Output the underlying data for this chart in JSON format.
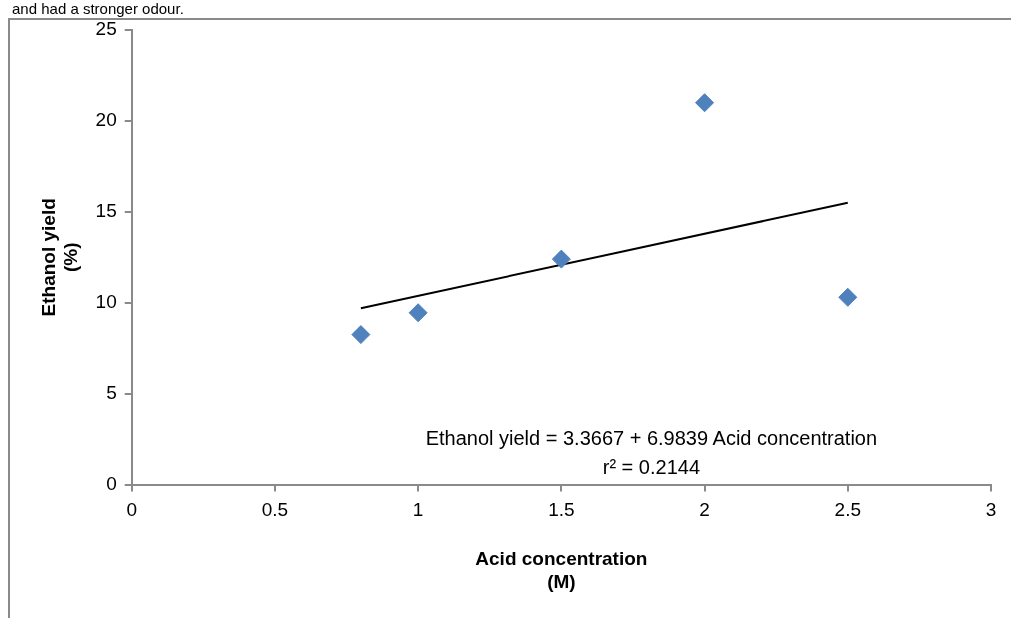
{
  "chart_data": {
    "type": "scatter",
    "xlabel": "Acid concentration (M)",
    "ylabel": "Ethanol yield (%)",
    "x": [
      0.8,
      1,
      1.5,
      2,
      2.5
    ],
    "series": [
      {
        "color": "#4f81bd",
        "values": [
          8.25,
          9.45,
          12.4,
          21,
          10.3
        ],
        "marker": "diamond"
      },
      {
        "type": "line",
        "x": [
          0.8,
          2.5
        ],
        "values": [
          9.7,
          15.5
        ],
        "color": "#000000",
        "marker": "none"
      }
    ],
    "xlim": [
      0,
      3
    ],
    "xticks": [
      0,
      0.5,
      1,
      1.5,
      2,
      2.5,
      3
    ],
    "ylim": [
      0,
      25
    ],
    "yticks": [
      0,
      5,
      10,
      15,
      20,
      25
    ],
    "grid": false,
    "legend": false,
    "annotations": [
      "and had a stronger odour.",
      "Ethanol yield = 3.3667 + 6.9839 Acid concentration",
      "r² = 0.2144"
    ]
  }
}
